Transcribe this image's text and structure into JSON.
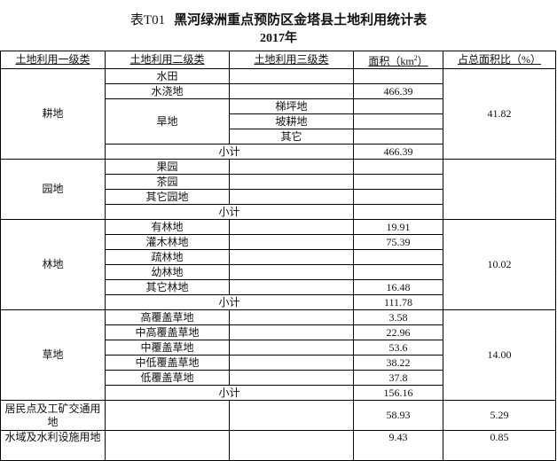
{
  "title": {
    "prefix": "表T01",
    "main": "黑河绿洲重点预防区金塔县土地利用统计表",
    "year": "2017年"
  },
  "headers": {
    "level1": "土地利用一级类",
    "level2": "土地利用二级类",
    "level3": "土地利用三级类",
    "area": "面积（km",
    "area_sup": "2",
    "area_close": "）",
    "ratio": "占总面积比（%）"
  },
  "subtotal_label": "小计",
  "gengdi": {
    "name": "耕地",
    "ratio": "41.82",
    "shuitian": "水田",
    "shuijiaodi": "水浇地",
    "shuijiaodi_area": "466.39",
    "handi": "旱地",
    "handi_sub": [
      "梯坪地",
      "坡耕地",
      "其它"
    ],
    "subtotal": "466.39"
  },
  "yuandi": {
    "name": "园地",
    "items": [
      "果园",
      "茶园",
      "其它园地"
    ]
  },
  "lindi": {
    "name": "林地",
    "ratio": "10.02",
    "items": [
      {
        "name": "有林地",
        "area": "19.91"
      },
      {
        "name": "灌木林地",
        "area": "75.39"
      },
      {
        "name": "疏林地",
        "area": ""
      },
      {
        "name": "幼林地",
        "area": ""
      },
      {
        "name": "其它林地",
        "area": "16.48"
      }
    ],
    "subtotal": "111.78"
  },
  "caodi": {
    "name": "草地",
    "ratio": "14.00",
    "items": [
      {
        "name": "高覆盖草地",
        "area": "3.58"
      },
      {
        "name": "中高覆盖草地",
        "area": "22.96"
      },
      {
        "name": "中覆盖草地",
        "area": "53.6"
      },
      {
        "name": "中低覆盖草地",
        "area": "38.22"
      },
      {
        "name": "低覆盖草地",
        "area": "37.8"
      }
    ],
    "subtotal": "156.16"
  },
  "jumin": {
    "name": "居民点及工矿交通用地",
    "area": "58.93",
    "ratio": "5.29"
  },
  "shuiyu": {
    "name": "水域及水利设施用地",
    "area": "9.43",
    "ratio": "0.85"
  }
}
